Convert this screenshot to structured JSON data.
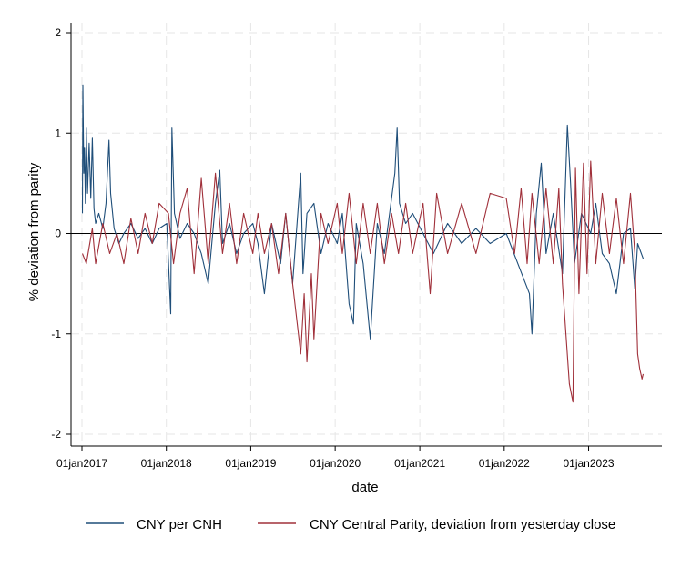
{
  "chart_data": {
    "type": "line",
    "title": "",
    "xlabel": "date",
    "ylabel": "% deviation from parity",
    "x_ticks": [
      "01jan2017",
      "01jan2018",
      "01jan2019",
      "01jan2020",
      "01jan2021",
      "01jan2022",
      "01jan2023"
    ],
    "y_ticks": [
      "-2",
      "-1",
      "0",
      "1",
      "2"
    ],
    "ylim": [
      -2,
      2
    ],
    "xlim": [
      "2017-01-01",
      "2023-08-31"
    ],
    "grid": true,
    "reference_line_y": 0,
    "legend_position": "bottom",
    "series": [
      {
        "name": "CNY per CNH",
        "color": "#1f4e79",
        "points": [
          [
            "2017-01-03",
            0.2
          ],
          [
            "2017-01-05",
            1.48
          ],
          [
            "2017-01-09",
            0.6
          ],
          [
            "2017-01-12",
            0.85
          ],
          [
            "2017-01-16",
            0.3
          ],
          [
            "2017-01-20",
            1.05
          ],
          [
            "2017-01-25",
            0.4
          ],
          [
            "2017-02-01",
            0.9
          ],
          [
            "2017-02-08",
            0.35
          ],
          [
            "2017-02-15",
            0.95
          ],
          [
            "2017-02-22",
            0.25
          ],
          [
            "2017-03-01",
            0.1
          ],
          [
            "2017-03-15",
            0.2
          ],
          [
            "2017-04-01",
            0.05
          ],
          [
            "2017-04-15",
            0.3
          ],
          [
            "2017-04-28",
            0.93
          ],
          [
            "2017-05-05",
            0.4
          ],
          [
            "2017-05-20",
            0.05
          ],
          [
            "2017-06-10",
            -0.1
          ],
          [
            "2017-07-01",
            0.0
          ],
          [
            "2017-08-01",
            0.1
          ],
          [
            "2017-09-01",
            -0.05
          ],
          [
            "2017-10-01",
            0.05
          ],
          [
            "2017-11-01",
            -0.1
          ],
          [
            "2017-12-01",
            0.05
          ],
          [
            "2018-01-03",
            0.1
          ],
          [
            "2018-01-20",
            -0.8
          ],
          [
            "2018-01-25",
            1.05
          ],
          [
            "2018-02-05",
            0.2
          ],
          [
            "2018-03-01",
            -0.05
          ],
          [
            "2018-04-01",
            0.1
          ],
          [
            "2018-05-01",
            0.0
          ],
          [
            "2018-06-01",
            -0.2
          ],
          [
            "2018-07-01",
            -0.5
          ],
          [
            "2018-08-01",
            0.3
          ],
          [
            "2018-08-20",
            0.63
          ],
          [
            "2018-09-01",
            -0.1
          ],
          [
            "2018-10-01",
            0.1
          ],
          [
            "2018-11-01",
            -0.2
          ],
          [
            "2018-12-01",
            0.0
          ],
          [
            "2019-01-10",
            0.1
          ],
          [
            "2019-02-01",
            -0.1
          ],
          [
            "2019-03-01",
            -0.6
          ],
          [
            "2019-04-01",
            0.1
          ],
          [
            "2019-05-10",
            -0.3
          ],
          [
            "2019-06-01",
            0.2
          ],
          [
            "2019-07-01",
            -0.5
          ],
          [
            "2019-08-05",
            0.6
          ],
          [
            "2019-08-15",
            -0.4
          ],
          [
            "2019-09-01",
            0.2
          ],
          [
            "2019-10-01",
            0.3
          ],
          [
            "2019-11-01",
            -0.2
          ],
          [
            "2019-12-01",
            0.1
          ],
          [
            "2020-01-10",
            -0.1
          ],
          [
            "2020-02-01",
            0.2
          ],
          [
            "2020-03-01",
            -0.7
          ],
          [
            "2020-03-20",
            -0.9
          ],
          [
            "2020-04-01",
            0.1
          ],
          [
            "2020-05-01",
            -0.3
          ],
          [
            "2020-06-01",
            -1.05
          ],
          [
            "2020-07-01",
            0.1
          ],
          [
            "2020-08-01",
            -0.2
          ],
          [
            "2020-09-15",
            0.6
          ],
          [
            "2020-09-25",
            1.05
          ],
          [
            "2020-10-05",
            0.3
          ],
          [
            "2020-11-01",
            0.1
          ],
          [
            "2020-12-01",
            0.2
          ],
          [
            "2021-01-15",
            0.0
          ],
          [
            "2021-03-01",
            -0.2
          ],
          [
            "2021-05-01",
            0.1
          ],
          [
            "2021-07-01",
            -0.1
          ],
          [
            "2021-09-01",
            0.05
          ],
          [
            "2021-11-01",
            -0.1
          ],
          [
            "2022-01-10",
            0.0
          ],
          [
            "2022-03-01",
            -0.3
          ],
          [
            "2022-04-20",
            -0.6
          ],
          [
            "2022-05-01",
            -1.0
          ],
          [
            "2022-05-20",
            0.2
          ],
          [
            "2022-06-10",
            0.7
          ],
          [
            "2022-07-01",
            -0.2
          ],
          [
            "2022-08-01",
            0.2
          ],
          [
            "2022-09-10",
            -0.4
          ],
          [
            "2022-10-01",
            1.08
          ],
          [
            "2022-10-15",
            0.5
          ],
          [
            "2022-11-01",
            -0.3
          ],
          [
            "2022-12-01",
            0.2
          ],
          [
            "2023-01-10",
            0.0
          ],
          [
            "2023-02-01",
            0.3
          ],
          [
            "2023-03-01",
            -0.2
          ],
          [
            "2023-04-01",
            -0.3
          ],
          [
            "2023-05-01",
            -0.6
          ],
          [
            "2023-06-01",
            0.0
          ],
          [
            "2023-07-01",
            0.05
          ],
          [
            "2023-07-20",
            -0.55
          ],
          [
            "2023-08-01",
            -0.1
          ],
          [
            "2023-08-25",
            -0.25
          ]
        ]
      },
      {
        "name": "CNY Central Parity, deviation from yesterday close",
        "color": "#a0303a",
        "points": [
          [
            "2017-01-03",
            -0.2
          ],
          [
            "2017-01-20",
            -0.3
          ],
          [
            "2017-02-15",
            0.05
          ],
          [
            "2017-03-01",
            -0.3
          ],
          [
            "2017-04-01",
            0.1
          ],
          [
            "2017-05-01",
            -0.2
          ],
          [
            "2017-06-01",
            0.0
          ],
          [
            "2017-07-01",
            -0.3
          ],
          [
            "2017-08-01",
            0.15
          ],
          [
            "2017-09-01",
            -0.2
          ],
          [
            "2017-10-01",
            0.2
          ],
          [
            "2017-11-01",
            -0.1
          ],
          [
            "2017-12-01",
            0.3
          ],
          [
            "2018-01-10",
            0.2
          ],
          [
            "2018-02-01",
            -0.3
          ],
          [
            "2018-03-01",
            0.2
          ],
          [
            "2018-04-01",
            0.45
          ],
          [
            "2018-05-01",
            -0.4
          ],
          [
            "2018-06-01",
            0.55
          ],
          [
            "2018-07-01",
            -0.3
          ],
          [
            "2018-08-01",
            0.6
          ],
          [
            "2018-09-01",
            -0.2
          ],
          [
            "2018-10-01",
            0.3
          ],
          [
            "2018-11-01",
            -0.3
          ],
          [
            "2018-12-01",
            0.2
          ],
          [
            "2019-01-10",
            -0.2
          ],
          [
            "2019-02-01",
            0.2
          ],
          [
            "2019-03-01",
            -0.2
          ],
          [
            "2019-04-01",
            0.1
          ],
          [
            "2019-05-01",
            -0.4
          ],
          [
            "2019-06-01",
            0.2
          ],
          [
            "2019-07-01",
            -0.5
          ],
          [
            "2019-08-05",
            -1.2
          ],
          [
            "2019-08-20",
            -0.6
          ],
          [
            "2019-09-01",
            -1.28
          ],
          [
            "2019-09-20",
            -0.4
          ],
          [
            "2019-10-01",
            -1.05
          ],
          [
            "2019-11-01",
            0.2
          ],
          [
            "2019-12-01",
            -0.1
          ],
          [
            "2020-01-10",
            0.3
          ],
          [
            "2020-02-01",
            -0.2
          ],
          [
            "2020-03-01",
            0.4
          ],
          [
            "2020-04-01",
            -0.3
          ],
          [
            "2020-05-01",
            0.3
          ],
          [
            "2020-06-01",
            -0.2
          ],
          [
            "2020-07-01",
            0.3
          ],
          [
            "2020-08-01",
            -0.3
          ],
          [
            "2020-09-01",
            0.2
          ],
          [
            "2020-10-01",
            -0.2
          ],
          [
            "2020-11-01",
            0.3
          ],
          [
            "2020-12-01",
            -0.2
          ],
          [
            "2021-01-15",
            0.3
          ],
          [
            "2021-02-15",
            -0.6
          ],
          [
            "2021-03-15",
            0.4
          ],
          [
            "2021-05-01",
            -0.2
          ],
          [
            "2021-07-01",
            0.3
          ],
          [
            "2021-09-01",
            -0.2
          ],
          [
            "2021-11-01",
            0.4
          ],
          [
            "2022-01-10",
            0.35
          ],
          [
            "2022-02-15",
            -0.2
          ],
          [
            "2022-03-15",
            0.45
          ],
          [
            "2022-04-10",
            -0.3
          ],
          [
            "2022-05-01",
            0.4
          ],
          [
            "2022-06-01",
            -0.3
          ],
          [
            "2022-07-01",
            0.45
          ],
          [
            "2022-08-01",
            -0.3
          ],
          [
            "2022-08-25",
            0.45
          ],
          [
            "2022-09-10",
            -0.5
          ],
          [
            "2022-09-25",
            -1.0
          ],
          [
            "2022-10-10",
            -1.5
          ],
          [
            "2022-10-25",
            -1.68
          ],
          [
            "2022-11-05",
            0.65
          ],
          [
            "2022-11-20",
            -0.6
          ],
          [
            "2022-12-10",
            0.7
          ],
          [
            "2022-12-25",
            -0.4
          ],
          [
            "2023-01-10",
            0.72
          ],
          [
            "2023-02-01",
            -0.3
          ],
          [
            "2023-03-01",
            0.4
          ],
          [
            "2023-04-01",
            -0.2
          ],
          [
            "2023-05-01",
            0.35
          ],
          [
            "2023-06-01",
            -0.3
          ],
          [
            "2023-07-01",
            0.4
          ],
          [
            "2023-07-20",
            -0.2
          ],
          [
            "2023-08-01",
            -1.2
          ],
          [
            "2023-08-10",
            -1.35
          ],
          [
            "2023-08-20",
            -1.45
          ],
          [
            "2023-08-25",
            -1.4
          ]
        ]
      }
    ]
  }
}
